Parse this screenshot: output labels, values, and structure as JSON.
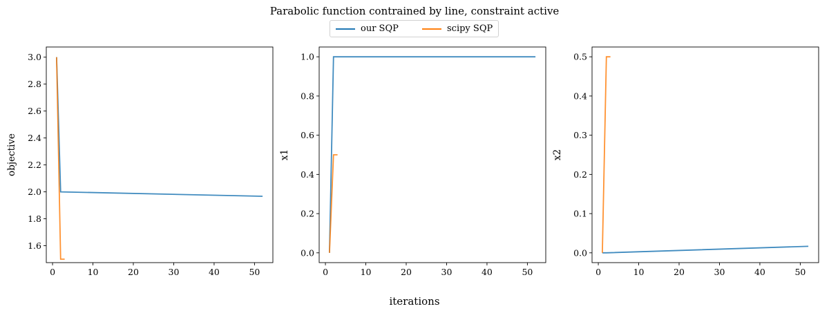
{
  "figure": {
    "title": "Parabolic function contrained by line, constraint active",
    "xlabel": "iterations"
  },
  "legend": {
    "placement": "top-center",
    "items": [
      {
        "label": "our SQP",
        "color": "#1f77b4"
      },
      {
        "label": "scipy SQP",
        "color": "#ff7f0e"
      }
    ]
  },
  "chart_data": [
    {
      "type": "line",
      "ylabel": "objective",
      "xlim": [
        -1.55,
        54.55
      ],
      "ylim": [
        1.4745,
        3.0755
      ],
      "xticks": [
        0,
        10,
        20,
        30,
        40,
        50
      ],
      "xticklabels": [
        "0",
        "10",
        "20",
        "30",
        "40",
        "50"
      ],
      "yticks": [
        1.6,
        1.8,
        2.0,
        2.2,
        2.4,
        2.6,
        2.8,
        3.0
      ],
      "yticklabels": [
        "1.6",
        "1.8",
        "2.0",
        "2.2",
        "2.4",
        "2.6",
        "2.8",
        "3.0"
      ],
      "grid": false,
      "series": [
        {
          "name": "our SQP",
          "color": "#1f77b4",
          "x": [
            1,
            2,
            52
          ],
          "y": [
            3.0,
            2.0,
            1.967
          ]
        },
        {
          "name": "scipy SQP",
          "color": "#ff7f0e",
          "x": [
            1,
            2,
            3
          ],
          "y": [
            3.0,
            1.5,
            1.5
          ]
        }
      ]
    },
    {
      "type": "line",
      "ylabel": "x1",
      "xlim": [
        -1.55,
        54.55
      ],
      "ylim": [
        -0.05,
        1.05
      ],
      "xticks": [
        0,
        10,
        20,
        30,
        40,
        50
      ],
      "xticklabels": [
        "0",
        "10",
        "20",
        "30",
        "40",
        "50"
      ],
      "yticks": [
        0.0,
        0.2,
        0.4,
        0.6,
        0.8,
        1.0
      ],
      "yticklabels": [
        "0.0",
        "0.2",
        "0.4",
        "0.6",
        "0.8",
        "1.0"
      ],
      "grid": false,
      "series": [
        {
          "name": "our SQP",
          "color": "#1f77b4",
          "x": [
            1,
            2,
            52
          ],
          "y": [
            0.0,
            1.0,
            1.0
          ]
        },
        {
          "name": "scipy SQP",
          "color": "#ff7f0e",
          "x": [
            1,
            2,
            3
          ],
          "y": [
            0.0,
            0.5,
            0.5
          ]
        }
      ]
    },
    {
      "type": "line",
      "ylabel": "x2",
      "xlim": [
        -1.55,
        54.55
      ],
      "ylim": [
        -0.025,
        0.525
      ],
      "xticks": [
        0,
        10,
        20,
        30,
        40,
        50
      ],
      "xticklabels": [
        "0",
        "10",
        "20",
        "30",
        "40",
        "50"
      ],
      "yticks": [
        0.0,
        0.1,
        0.2,
        0.3,
        0.4,
        0.5
      ],
      "yticklabels": [
        "0.0",
        "0.1",
        "0.2",
        "0.3",
        "0.4",
        "0.5"
      ],
      "grid": false,
      "series": [
        {
          "name": "our SQP",
          "color": "#1f77b4",
          "x": [
            1,
            2,
            52
          ],
          "y": [
            0.0,
            0.0,
            0.0167
          ]
        },
        {
          "name": "scipy SQP",
          "color": "#ff7f0e",
          "x": [
            1,
            2,
            3
          ],
          "y": [
            0.0,
            0.5,
            0.5
          ]
        }
      ]
    }
  ]
}
